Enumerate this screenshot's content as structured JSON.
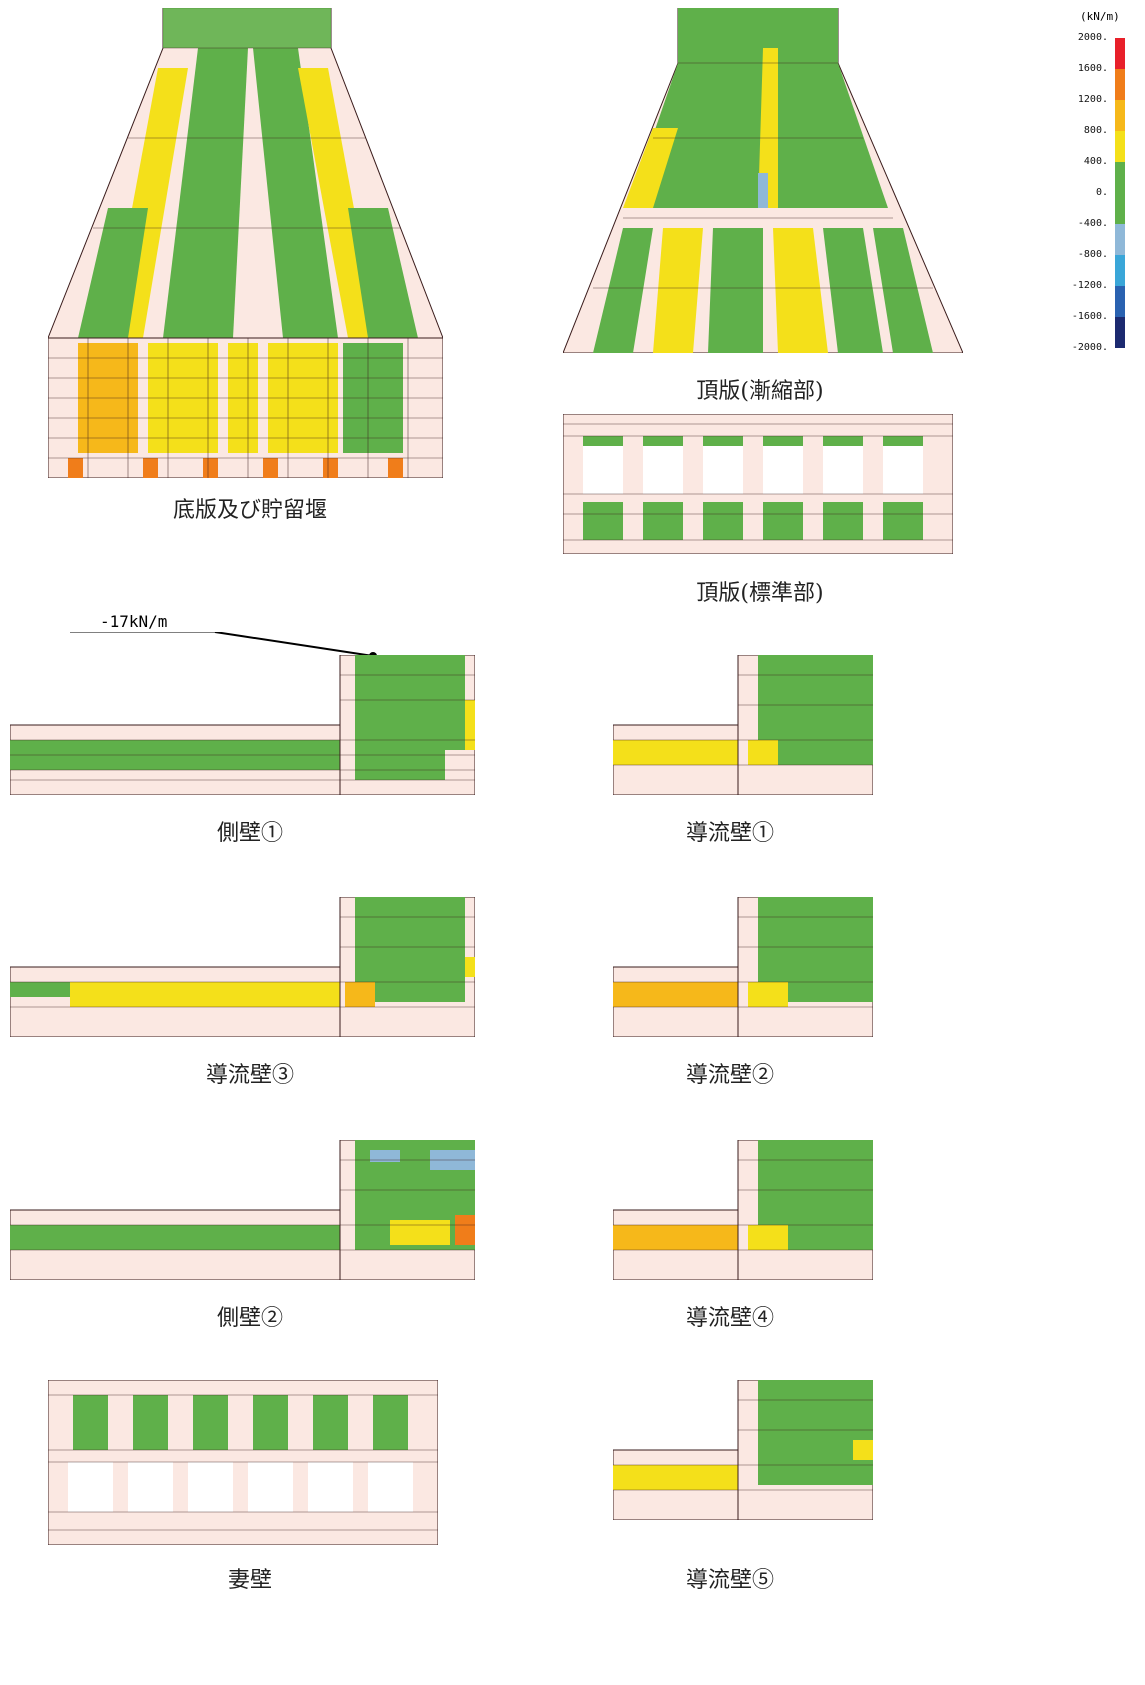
{
  "legend": {
    "unit": "(kN/m)",
    "ticks": [
      "2000.",
      "1600.",
      "1200.",
      "800.",
      "400.",
      "0.",
      "-400.",
      "-800.",
      "-1200.",
      "-1600.",
      "-2000."
    ],
    "colors": [
      "#e8202a",
      "#f07d1a",
      "#f6b81a",
      "#f4e01a",
      "#5fb04a",
      "#5fb04a",
      "#8fb8d8",
      "#3aa6d8",
      "#2a62b0",
      "#1c2a70"
    ]
  },
  "callout": {
    "label": "-17kN/m"
  },
  "captions": {
    "bottom_slab": "底版及び貯留堰",
    "top_slab_taper": "頂版(漸縮部)",
    "top_slab_std": "頂版(標準部)",
    "side_wall_1": "側壁①",
    "guide_wall_1": "導流壁①",
    "guide_wall_3": "導流壁③",
    "guide_wall_2": "導流壁②",
    "side_wall_2": "側壁②",
    "guide_wall_4": "導流壁④",
    "end_wall": "妻壁",
    "guide_wall_5": "導流壁⑤"
  },
  "colors": {
    "green": "#5fb04a",
    "yellow": "#f4e01a",
    "orange": "#f6b81a",
    "deep_orange": "#f07d1a",
    "light_blue": "#8fb8d8",
    "pink_bg": "#fbe8e2",
    "grid": "#3a1c1c"
  }
}
